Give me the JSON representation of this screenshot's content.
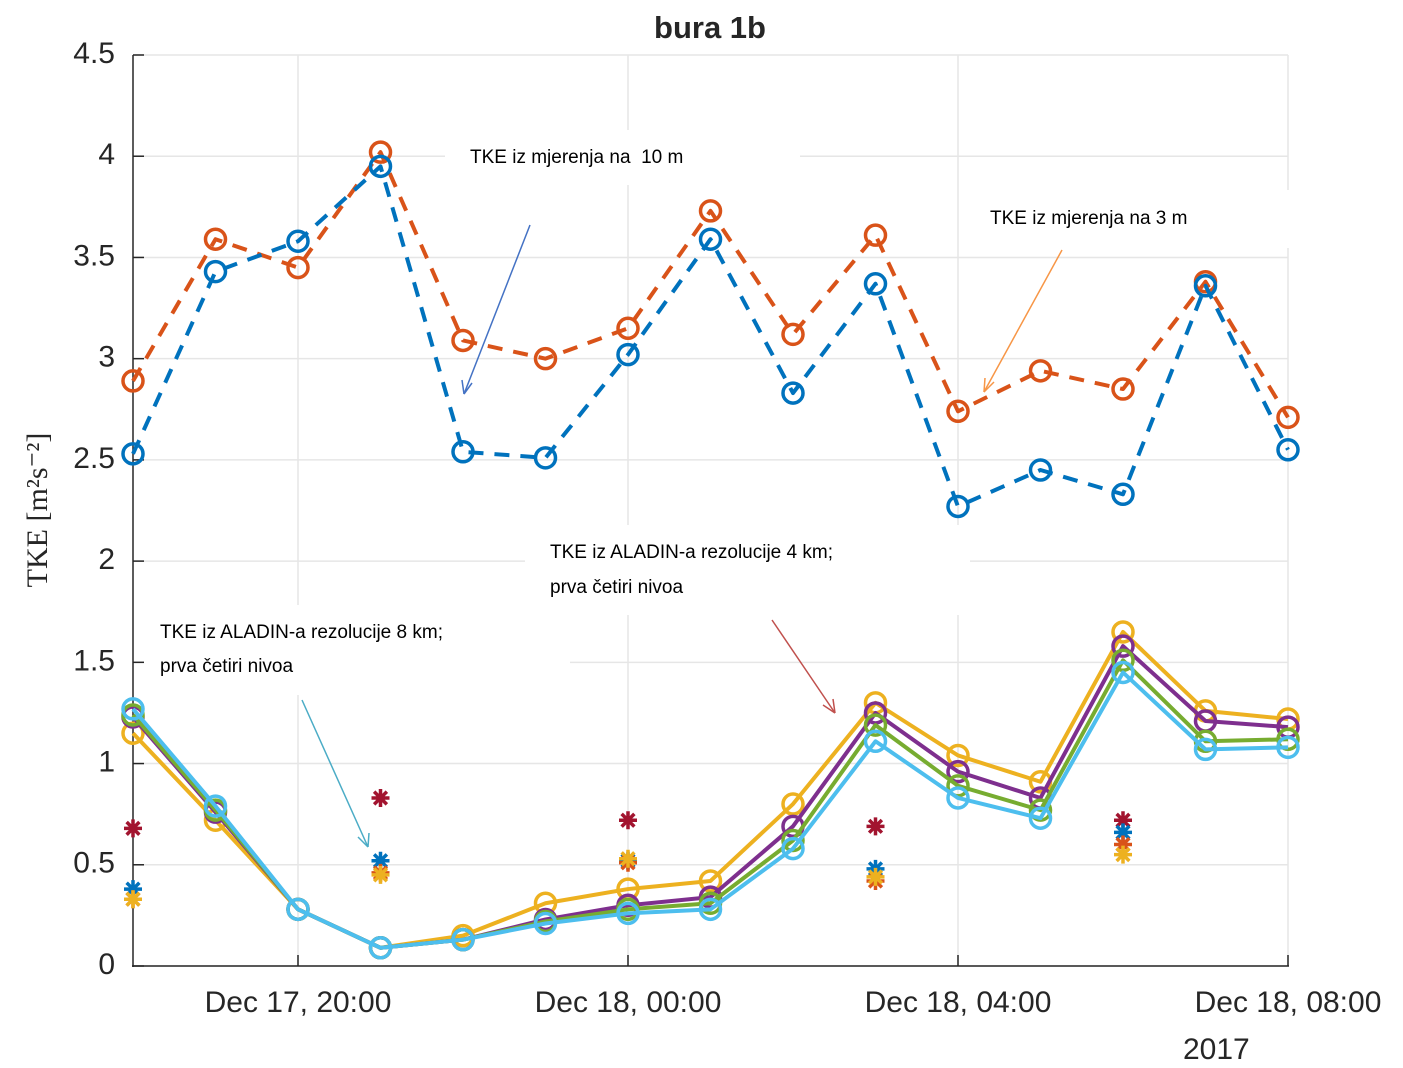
{
  "chart_data": {
    "type": "line",
    "title": "bura 1b",
    "ylabel": "TKE [m²s⁻²]",
    "x": [
      "2017-12-17 18:00",
      "2017-12-17 19:00",
      "2017-12-17 20:00",
      "2017-12-17 21:00",
      "2017-12-17 22:00",
      "2017-12-17 23:00",
      "2017-12-18 00:00",
      "2017-12-18 01:00",
      "2017-12-18 02:00",
      "2017-12-18 03:00",
      "2017-12-18 04:00",
      "2017-12-18 05:00",
      "2017-12-18 06:00",
      "2017-12-18 07:00",
      "2017-12-18 08:00"
    ],
    "xlim": [
      "2017-12-17 18:00",
      "2017-12-18 08:00"
    ],
    "xticks": [
      {
        "value": "2017-12-17 20:00",
        "label": "Dec 17, 20:00"
      },
      {
        "value": "2017-12-18 00:00",
        "label": "Dec 18, 00:00"
      },
      {
        "value": "2017-12-18 04:00",
        "label": "Dec 18, 04:00"
      },
      {
        "value": "2017-12-18 08:00",
        "label": "Dec 18, 08:00"
      }
    ],
    "xtick_year": "2017",
    "ylim": [
      0,
      4.5
    ],
    "yticks": [
      0,
      0.5,
      1,
      1.5,
      2,
      2.5,
      3,
      3.5,
      4,
      4.5
    ],
    "grid": true,
    "series": [
      {
        "color": "#D95319",
        "linestyle": "dashed",
        "marker": "o",
        "values": [
          2.89,
          3.59,
          3.45,
          4.02,
          3.09,
          3.0,
          3.15,
          3.73,
          3.12,
          3.61,
          2.74,
          2.94,
          2.85,
          3.38,
          2.71
        ]
      },
      {
        "color": "#0072BD",
        "linestyle": "dashed",
        "marker": "o",
        "values": [
          2.53,
          3.43,
          3.58,
          3.95,
          2.54,
          2.51,
          3.02,
          3.59,
          2.83,
          3.37,
          2.27,
          2.45,
          2.33,
          3.36,
          2.55
        ]
      },
      {
        "color": "#EDB120",
        "linestyle": "solid",
        "marker": "o",
        "values": [
          1.15,
          0.72,
          0.28,
          0.09,
          0.15,
          0.31,
          0.38,
          0.42,
          0.8,
          1.3,
          1.04,
          0.91,
          1.65,
          1.26,
          1.22
        ]
      },
      {
        "color": "#7E2F8E",
        "linestyle": "solid",
        "marker": "o",
        "values": [
          1.23,
          0.76,
          0.28,
          0.09,
          0.13,
          0.23,
          0.3,
          0.34,
          0.69,
          1.25,
          0.96,
          0.83,
          1.58,
          1.21,
          1.18
        ]
      },
      {
        "color": "#77AC30",
        "linestyle": "solid",
        "marker": "o",
        "values": [
          1.24,
          0.77,
          0.28,
          0.09,
          0.13,
          0.22,
          0.28,
          0.31,
          0.62,
          1.19,
          0.89,
          0.77,
          1.51,
          1.11,
          1.12
        ]
      },
      {
        "color": "#4DBEEE",
        "linestyle": "solid",
        "marker": "o",
        "values": [
          1.27,
          0.79,
          0.28,
          0.09,
          0.13,
          0.21,
          0.26,
          0.28,
          0.58,
          1.11,
          0.83,
          0.73,
          1.45,
          1.07,
          1.08
        ]
      },
      {
        "color": "#A2142F",
        "linestyle": "none",
        "marker": "*",
        "values": [
          0.68,
          null,
          null,
          0.83,
          null,
          null,
          0.72,
          null,
          null,
          0.69,
          null,
          null,
          0.72,
          null,
          null
        ]
      },
      {
        "color": "#0072BD",
        "linestyle": "none",
        "marker": "*",
        "values": [
          0.38,
          null,
          null,
          0.52,
          null,
          null,
          0.52,
          null,
          null,
          0.48,
          null,
          null,
          0.66,
          null,
          null
        ]
      },
      {
        "color": "#D95319",
        "linestyle": "none",
        "marker": "*",
        "values": [
          0.33,
          null,
          null,
          0.46,
          null,
          null,
          0.51,
          null,
          null,
          0.42,
          null,
          null,
          0.6,
          null,
          null
        ]
      },
      {
        "color": "#EDB120",
        "linestyle": "none",
        "marker": "*",
        "values": [
          0.33,
          null,
          null,
          0.45,
          null,
          null,
          0.53,
          null,
          null,
          0.44,
          null,
          null,
          0.55,
          null,
          null
        ]
      }
    ],
    "annotations": [
      {
        "lines": [
          "TKE iz mjerenja na  10 m"
        ]
      },
      {
        "lines": [
          "TKE iz mjerenja na 3 m"
        ]
      },
      {
        "lines": [
          "TKE iz ALADIN-a rezolucije 4 km;",
          "prva četiri nivoa"
        ]
      },
      {
        "lines": [
          "TKE iz ALADIN-a rezolucije 8 km;",
          "prva četiri nivoa"
        ]
      }
    ]
  }
}
